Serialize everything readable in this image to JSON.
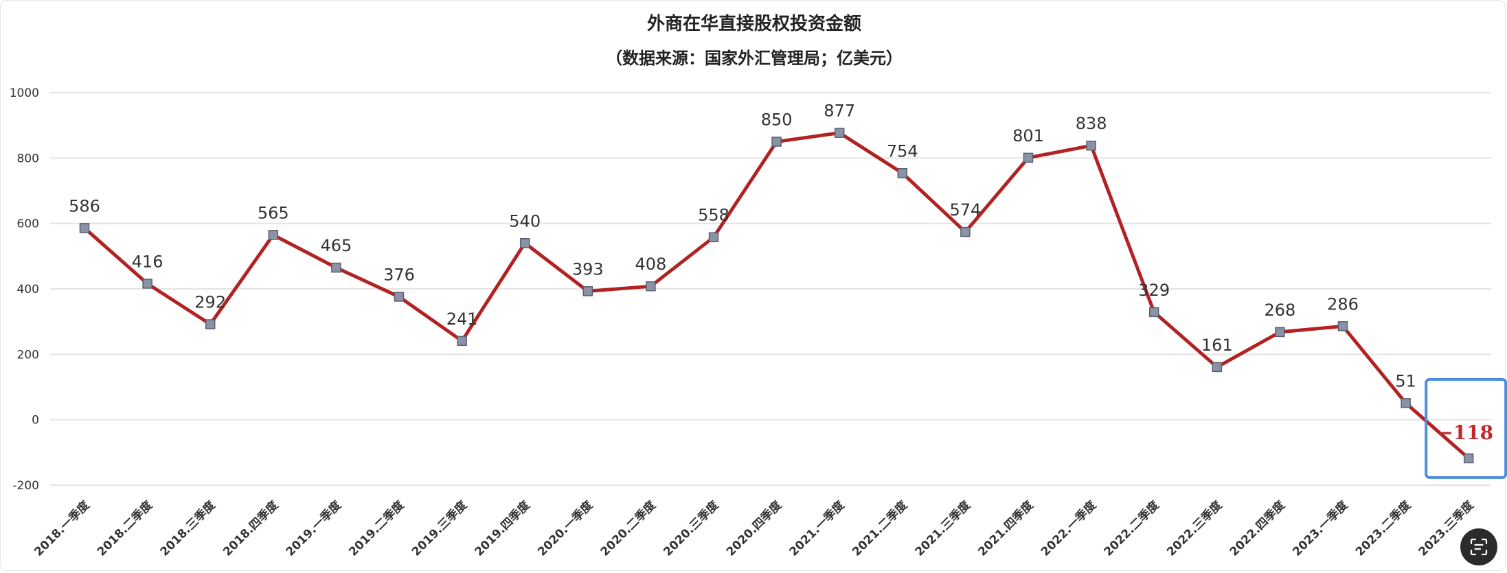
{
  "chart_data": {
    "type": "line",
    "title": "外商在华直接股权投资金额",
    "subtitle": "（数据来源：国家外汇管理局；亿美元）",
    "categories": [
      "2018.一季度",
      "2018.二季度",
      "2018.三季度",
      "2018.四季度",
      "2019.一季度",
      "2019.二季度",
      "2019.三季度",
      "2019.四季度",
      "2020.一季度",
      "2020.二季度",
      "2020.三季度",
      "2020.四季度",
      "2021.一季度",
      "2021.二季度",
      "2021.三季度",
      "2021.四季度",
      "2022.一季度",
      "2022.二季度",
      "2022.三季度",
      "2022.四季度",
      "2023.一季度",
      "2023.二季度",
      "2023.三季度"
    ],
    "values": [
      586,
      416,
      292,
      565,
      465,
      376,
      241,
      540,
      393,
      408,
      558,
      850,
      877,
      754,
      574,
      801,
      838,
      329,
      161,
      268,
      286,
      51,
      -118
    ],
    "data_labels": [
      "586",
      "416",
      "292",
      "565",
      "465",
      "376",
      "241",
      "540",
      "393",
      "408",
      "558",
      "850",
      "877",
      "754",
      "574",
      "801",
      "838",
      "329",
      "161",
      "268",
      "286",
      "51",
      "−118"
    ],
    "ylim": [
      -200,
      1000
    ],
    "yticks": [
      "-200",
      "0",
      "200",
      "400",
      "600",
      "800",
      "1000"
    ],
    "xlabel": "",
    "ylabel": "",
    "grid": true,
    "legend": "none",
    "highlight_index": 22,
    "colors": {
      "line": "#b22222",
      "marker_fill": "#8a93a6",
      "marker_stroke": "#5a5f70",
      "grid": "#e4e4e4",
      "highlight_box": "#4a90d9",
      "negative_label": "#c0282d"
    }
  },
  "ui": {
    "ocr_button_icon": "text-scan-icon"
  }
}
